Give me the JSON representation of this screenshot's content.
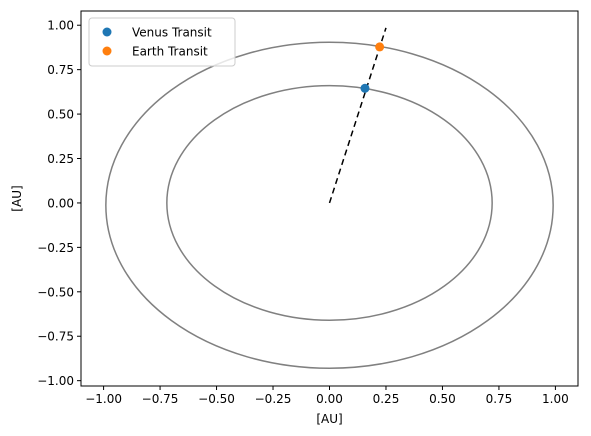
{
  "chart_data": {
    "type": "scatter",
    "xlabel": "[AU]",
    "ylabel": "[AU]",
    "xlim": [
      -1.1,
      1.1
    ],
    "ylim": [
      -1.03,
      1.08
    ],
    "x_ticks": [
      -1.0,
      -0.75,
      -0.5,
      -0.25,
      0.0,
      0.25,
      0.5,
      0.75,
      1.0
    ],
    "x_tick_labels": [
      "−1.00",
      "−0.75",
      "−0.50",
      "−0.25",
      "0.00",
      "0.25",
      "0.50",
      "0.75",
      "1.00"
    ],
    "y_ticks": [
      -1.0,
      -0.75,
      -0.5,
      -0.25,
      0.0,
      0.25,
      0.5,
      0.75,
      1.0
    ],
    "y_tick_labels": [
      "−1.00",
      "−0.75",
      "−0.50",
      "−0.25",
      "0.00",
      "0.25",
      "0.50",
      "0.75",
      "1.00"
    ],
    "grid": false,
    "legend_placement": "top-left",
    "orbits": [
      {
        "cx": 0.0,
        "cy": 0.0,
        "rx": 0.72,
        "ry": 0.66,
        "color": "#808080"
      },
      {
        "cx": 0.0,
        "cy": -0.013,
        "rx": 0.99,
        "ry": 0.917,
        "color": "#808080"
      }
    ],
    "transit_line": {
      "x": [
        0.0,
        0.25
      ],
      "y": [
        0.0,
        0.985
      ],
      "color": "#000000",
      "style": "dashed"
    },
    "series": [
      {
        "name": "Venus Transit",
        "x": [
          0.157
        ],
        "y": [
          0.645
        ],
        "color": "#1f77b4"
      },
      {
        "name": "Earth Transit",
        "x": [
          0.222
        ],
        "y": [
          0.878
        ],
        "color": "#ff7f0e"
      }
    ]
  }
}
